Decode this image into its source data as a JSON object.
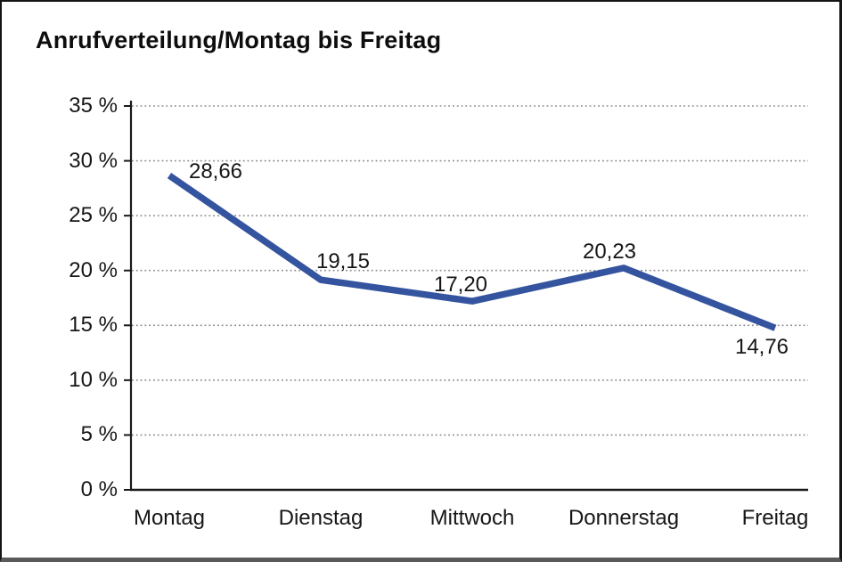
{
  "window": {
    "title": "Anrufverteilung/Montag bis Freitag"
  },
  "colors": {
    "line": "#34549F",
    "grid": "#8a8a8a",
    "axis": "#1a1a1a",
    "text": "#161616",
    "background": "#ffffff",
    "frame_border": "#151515",
    "frame_bottom": "#5a5a5a"
  },
  "chart_data": {
    "type": "line",
    "title": "Anrufverteilung/Montag bis Freitag",
    "categories": [
      "Montag",
      "Dienstag",
      "Mittwoch",
      "Donnerstag",
      "Freitag"
    ],
    "series": [
      {
        "name": "Anrufverteilung",
        "values": [
          28.66,
          19.15,
          17.2,
          20.23,
          14.76
        ]
      }
    ],
    "data_labels": [
      "28,66",
      "19,15",
      "17,20",
      "20,23",
      "14,76"
    ],
    "xlabel": "",
    "ylabel": "",
    "y_axis": {
      "min": 0,
      "max": 35,
      "step": 5,
      "unit": "%",
      "tick_labels": [
        "0 %",
        "5 %",
        "10 %",
        "15 %",
        "20 %",
        "25 %",
        "30 %",
        "35 %"
      ]
    },
    "grid": "horizontal dotted",
    "legend": "none"
  }
}
